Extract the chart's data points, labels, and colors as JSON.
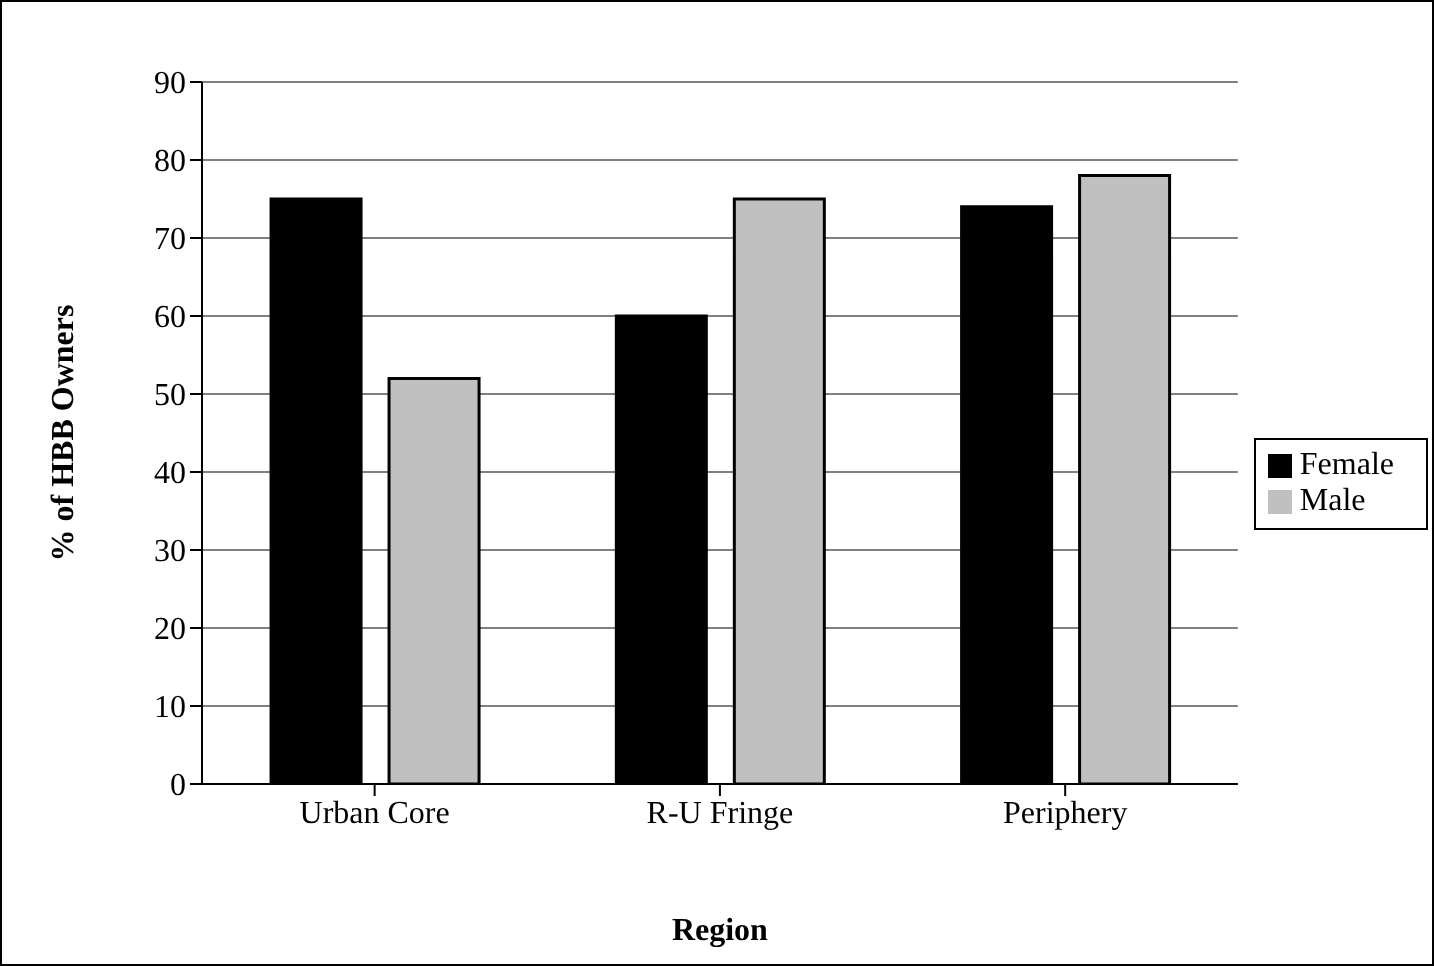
{
  "chart_data": {
    "type": "bar",
    "xlabel": "Region",
    "ylabel": "% of HBB Owners",
    "categories": [
      "Urban Core",
      "R-U Fringe",
      "Periphery"
    ],
    "series": [
      {
        "name": "Female",
        "color": "#000000",
        "values": [
          75,
          60,
          74
        ]
      },
      {
        "name": "Male",
        "color": "#c0c0c0",
        "values": [
          52,
          75,
          78
        ]
      }
    ],
    "ylim": [
      0,
      90
    ],
    "yticks": [
      0,
      10,
      20,
      30,
      40,
      50,
      60,
      70,
      80,
      90
    ],
    "grid": "y",
    "legend": "right"
  }
}
